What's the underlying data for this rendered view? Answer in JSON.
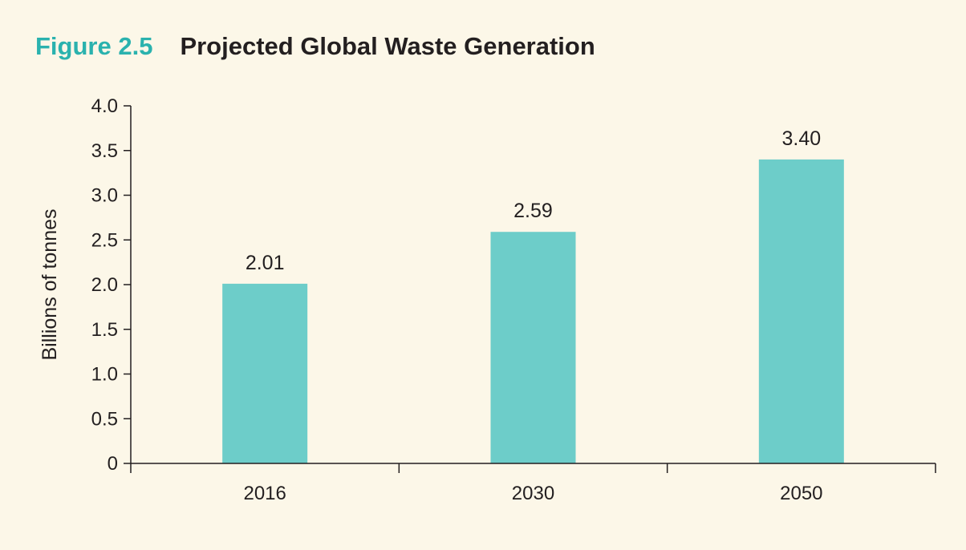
{
  "figure": {
    "label": "Figure 2.5",
    "title": "Projected Global Waste Generation"
  },
  "colors": {
    "background": "#fcf7e8",
    "bar": "#6dcdc9",
    "label_accent": "#2ab2ae",
    "text": "#231f20",
    "axis": "#231f20"
  },
  "chart_data": {
    "type": "bar",
    "title": "Projected Global Waste Generation",
    "xlabel": "",
    "ylabel": "Billions of tonnes",
    "categories": [
      "2016",
      "2030",
      "2050"
    ],
    "values": [
      2.01,
      2.59,
      3.4
    ],
    "data_labels": [
      "2.01",
      "2.59",
      "3.40"
    ],
    "ylim": [
      0,
      4.0
    ],
    "yticks": [
      0,
      0.5,
      1.0,
      1.5,
      2.0,
      2.5,
      3.0,
      3.5,
      4.0
    ],
    "ytick_labels": [
      "0",
      "0.5",
      "1.0",
      "1.5",
      "2.0",
      "2.5",
      "3.0",
      "3.5",
      "4.0"
    ],
    "grid": false,
    "legend": "none"
  }
}
